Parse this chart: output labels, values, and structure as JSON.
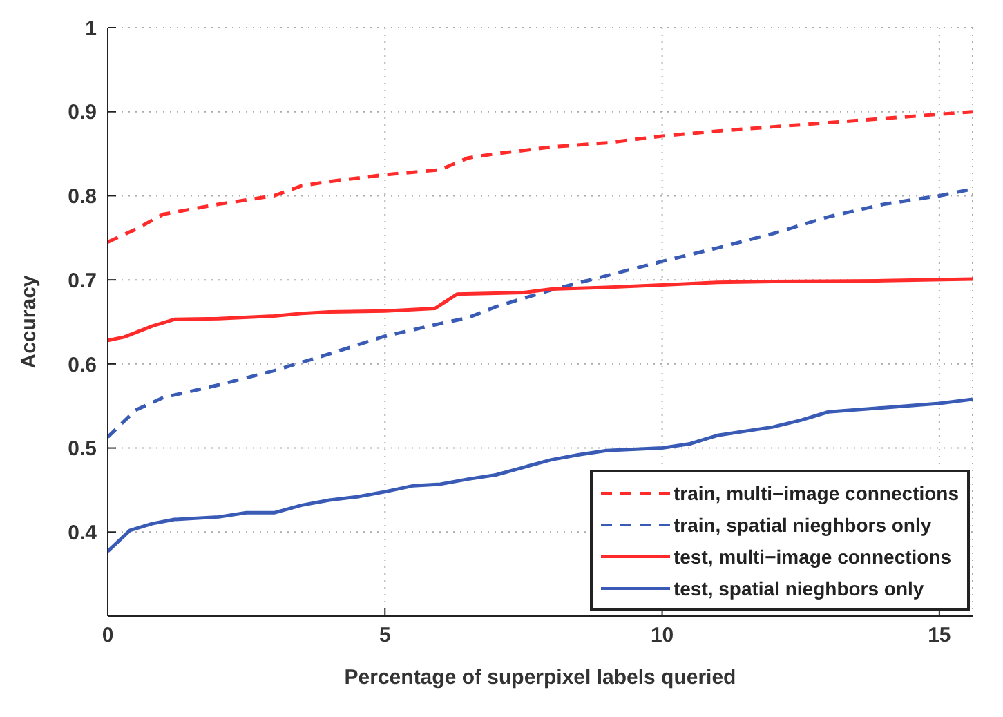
{
  "chart_data": {
    "type": "line",
    "xlabel": "Percentage of superpixel labels queried",
    "ylabel": "Accuracy",
    "xlim": [
      0,
      15.6
    ],
    "xticks": [
      0,
      5,
      10,
      15
    ],
    "ylim": [
      0.3,
      1
    ],
    "yticks": [
      0.4,
      0.5,
      0.6,
      0.7,
      0.8,
      0.9,
      1
    ],
    "grid": true,
    "legend": "bottom right",
    "marker": "none",
    "series": [
      {
        "name": "train, multi−image connections",
        "color": "#ff2a2a",
        "line_style": "dashed",
        "x": [
          0,
          0.5,
          1,
          2,
          3,
          3.5,
          4,
          5,
          6,
          6.5,
          7,
          8,
          9,
          10,
          11,
          12,
          13,
          14,
          15,
          15.6
        ],
        "values": [
          0.745,
          0.76,
          0.778,
          0.79,
          0.8,
          0.812,
          0.817,
          0.825,
          0.831,
          0.845,
          0.85,
          0.858,
          0.863,
          0.871,
          0.877,
          0.882,
          0.887,
          0.892,
          0.897,
          0.9
        ]
      },
      {
        "name": "train, spatial nieghbors only",
        "color": "#3a5bb5",
        "line_style": "dashed",
        "x": [
          0,
          0.5,
          1,
          2,
          3,
          4,
          5,
          6,
          6.5,
          7,
          8,
          9,
          10,
          11,
          12,
          13,
          14,
          15,
          15.6
        ],
        "values": [
          0.513,
          0.545,
          0.56,
          0.575,
          0.592,
          0.612,
          0.633,
          0.648,
          0.655,
          0.668,
          0.688,
          0.705,
          0.722,
          0.738,
          0.755,
          0.775,
          0.79,
          0.8,
          0.808
        ]
      },
      {
        "name": "test, multi−image connections",
        "color": "#ff2a2a",
        "line_style": "solid",
        "x": [
          0,
          0.3,
          0.8,
          1.2,
          2,
          3,
          3.5,
          4,
          5,
          5.9,
          6.3,
          7,
          7.5,
          8,
          9,
          10,
          11,
          12,
          14,
          15.6
        ],
        "values": [
          0.628,
          0.632,
          0.645,
          0.653,
          0.654,
          0.657,
          0.66,
          0.662,
          0.663,
          0.666,
          0.683,
          0.684,
          0.685,
          0.689,
          0.691,
          0.694,
          0.697,
          0.698,
          0.699,
          0.701
        ]
      },
      {
        "name": "test, spatial nieghbors only",
        "color": "#3a5bb5",
        "line_style": "solid",
        "x": [
          0,
          0.4,
          0.8,
          1.2,
          2,
          2.5,
          3,
          3.5,
          4,
          4.5,
          5,
          5.5,
          6,
          6.5,
          7,
          7.5,
          8,
          8.5,
          9,
          10,
          10.5,
          11,
          12,
          12.5,
          13,
          14,
          15,
          15.6
        ],
        "values": [
          0.377,
          0.402,
          0.41,
          0.415,
          0.418,
          0.423,
          0.423,
          0.432,
          0.438,
          0.442,
          0.448,
          0.455,
          0.457,
          0.463,
          0.468,
          0.477,
          0.486,
          0.492,
          0.497,
          0.5,
          0.505,
          0.515,
          0.525,
          0.533,
          0.543,
          0.548,
          0.553,
          0.558
        ]
      }
    ]
  }
}
